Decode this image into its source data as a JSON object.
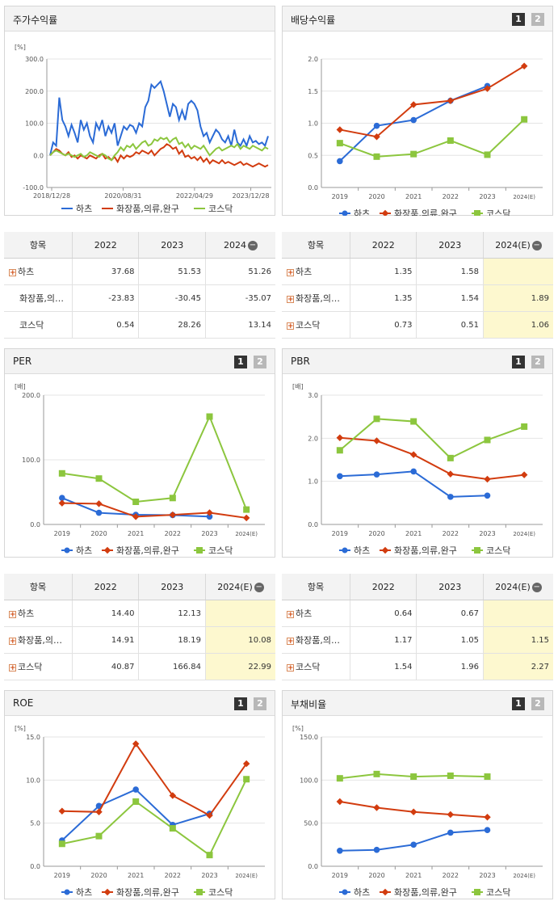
{
  "legend_items": [
    "하츠",
    "화장품,의류,완구",
    "코스닥"
  ],
  "series_colors": [
    "#2b6bd6",
    "#d23c0f",
    "#8cc63e"
  ],
  "tab_labels": [
    "1",
    "2"
  ],
  "charts": {
    "stock": {
      "title": "주가수익률",
      "unit": "[%]",
      "chart_data": {
        "type": "line",
        "x_ticks": [
          "2018/12/28",
          "2020/08/31",
          "2022/04/29",
          "2023/12/28"
        ],
        "y_ticks": [
          "300.0",
          "200.0",
          "100.0",
          "0.0",
          "-100.0"
        ],
        "ylim": [
          -100,
          300
        ],
        "series": [
          {
            "name": "하츠",
            "values": [
              0,
              40,
              30,
              180,
              110,
              90,
              60,
              95,
              70,
              40,
              110,
              80,
              100,
              60,
              40,
              100,
              80,
              110,
              60,
              90,
              70,
              100,
              30,
              60,
              90,
              80,
              95,
              90,
              70,
              100,
              90,
              150,
              170,
              220,
              210,
              220,
              230,
              200,
              160,
              120,
              160,
              150,
              110,
              140,
              110,
              160,
              170,
              160,
              140,
              90,
              60,
              70,
              40,
              60,
              80,
              70,
              50,
              40,
              60,
              30,
              80,
              40,
              30,
              50,
              30,
              60,
              40,
              45,
              35,
              40,
              30,
              60
            ]
          },
          {
            "name": "화장품,의류,완구",
            "values": [
              0,
              10,
              20,
              15,
              5,
              0,
              10,
              -5,
              0,
              -10,
              0,
              -5,
              -10,
              0,
              -5,
              -10,
              0,
              5,
              -10,
              -5,
              -15,
              -5,
              -20,
              0,
              -10,
              0,
              -5,
              0,
              10,
              5,
              15,
              10,
              5,
              15,
              0,
              10,
              20,
              25,
              35,
              30,
              20,
              25,
              5,
              15,
              -5,
              0,
              -10,
              -5,
              -15,
              -5,
              -20,
              -10,
              -25,
              -15,
              -20,
              -25,
              -15,
              -25,
              -20,
              -25,
              -30,
              -25,
              -20,
              -30,
              -25,
              -30,
              -35,
              -30,
              -25,
              -30,
              -35,
              -30
            ]
          },
          {
            "name": "코스닥",
            "values": [
              0,
              10,
              15,
              10,
              5,
              0,
              5,
              0,
              -5,
              0,
              5,
              -5,
              0,
              10,
              5,
              0,
              -5,
              5,
              0,
              -10,
              -15,
              0,
              10,
              25,
              15,
              30,
              25,
              35,
              20,
              30,
              40,
              45,
              30,
              35,
              50,
              45,
              55,
              50,
              55,
              40,
              50,
              55,
              35,
              40,
              25,
              35,
              20,
              30,
              25,
              20,
              30,
              15,
              0,
              10,
              20,
              25,
              15,
              20,
              25,
              30,
              25,
              35,
              20,
              30,
              25,
              20,
              30,
              25,
              20,
              15,
              25,
              20
            ]
          }
        ]
      }
    },
    "div": {
      "title": "배당수익률",
      "chart_data": {
        "type": "line",
        "categories": [
          "2019",
          "2020",
          "2021",
          "2022",
          "2023",
          "2024(E)"
        ],
        "y_ticks": [
          "2.0",
          "1.5",
          "1.0",
          "0.5",
          "0.0"
        ],
        "ylim": [
          0,
          2.0
        ],
        "series": [
          {
            "name": "하츠",
            "values": [
              0.41,
              0.96,
              1.05,
              1.35,
              1.58,
              null
            ]
          },
          {
            "name": "화장품,의류,완구",
            "values": [
              0.9,
              0.79,
              1.29,
              1.35,
              1.54,
              1.89
            ]
          },
          {
            "name": "코스닥",
            "values": [
              0.69,
              0.48,
              0.52,
              0.73,
              0.51,
              1.06
            ]
          }
        ]
      }
    },
    "per": {
      "title": "PER",
      "unit": "[배]",
      "chart_data": {
        "type": "line",
        "categories": [
          "2019",
          "2020",
          "2021",
          "2022",
          "2023",
          "2024(E)"
        ],
        "y_ticks": [
          "200.0",
          "100.0",
          "0.0"
        ],
        "ylim": [
          0,
          200
        ],
        "series": [
          {
            "name": "하츠",
            "values": [
              41,
              18,
              15,
              14.4,
              12.13,
              null
            ]
          },
          {
            "name": "화장품,의류,완구",
            "values": [
              33,
              32,
              12,
              14.91,
              18.19,
              10.08
            ]
          },
          {
            "name": "코스닥",
            "values": [
              79,
              71,
              35,
              40.87,
              166.84,
              22.99
            ]
          }
        ]
      }
    },
    "pbr": {
      "title": "PBR",
      "unit": "[배]",
      "chart_data": {
        "type": "line",
        "categories": [
          "2019",
          "2020",
          "2021",
          "2022",
          "2023",
          "2024(E)"
        ],
        "y_ticks": [
          "3.0",
          "2.0",
          "1.0",
          "0.0"
        ],
        "ylim": [
          0,
          3.0
        ],
        "series": [
          {
            "name": "하츠",
            "values": [
              1.12,
              1.16,
              1.23,
              0.64,
              0.67,
              null
            ]
          },
          {
            "name": "화장품,의류,완구",
            "values": [
              2.01,
              1.94,
              1.62,
              1.17,
              1.05,
              1.15
            ]
          },
          {
            "name": "코스닥",
            "values": [
              1.72,
              2.45,
              2.39,
              1.54,
              1.96,
              2.27
            ]
          }
        ]
      }
    },
    "roe": {
      "title": "ROE",
      "unit": "[%]",
      "chart_data": {
        "type": "line",
        "categories": [
          "2019",
          "2020",
          "2021",
          "2022",
          "2023",
          "2024(E)"
        ],
        "y_ticks": [
          "15.0",
          "10.0",
          "5.0",
          "0.0"
        ],
        "ylim": [
          0,
          15
        ],
        "series": [
          {
            "name": "하츠",
            "values": [
              3.0,
              7.0,
              8.9,
              4.8,
              6.1,
              null
            ]
          },
          {
            "name": "화장품,의류,완구",
            "values": [
              6.4,
              6.3,
              14.2,
              8.2,
              5.9,
              11.9
            ]
          },
          {
            "name": "코스닥",
            "values": [
              2.6,
              3.5,
              7.5,
              4.4,
              1.3,
              10.1
            ]
          }
        ]
      }
    },
    "debt": {
      "title": "부채비율",
      "unit": "[%]",
      "chart_data": {
        "type": "line",
        "categories": [
          "2019",
          "2020",
          "2021",
          "2022",
          "2023",
          "2024(E)"
        ],
        "y_ticks": [
          "150.0",
          "100.0",
          "50.0",
          "0.0"
        ],
        "ylim": [
          0,
          150
        ],
        "series": [
          {
            "name": "하츠",
            "values": [
              18,
              19,
              25,
              39,
              42,
              null
            ]
          },
          {
            "name": "화장품,의류,완구",
            "values": [
              75,
              68,
              63,
              60,
              57,
              null
            ]
          },
          {
            "name": "코스닥",
            "values": [
              102,
              107,
              104,
              105,
              104,
              null
            ]
          }
        ]
      }
    }
  },
  "tables": {
    "stock": {
      "headers": [
        "항목",
        "2022",
        "2023",
        "2024"
      ],
      "rows": [
        {
          "name": "하츠",
          "expandable": true,
          "values": [
            "37.68",
            "51.53",
            "51.26"
          ]
        },
        {
          "name": "화장품,의…",
          "expandable": false,
          "values": [
            "-23.83",
            "-30.45",
            "-35.07"
          ]
        },
        {
          "name": "코스닥",
          "expandable": false,
          "values": [
            "0.54",
            "28.26",
            "13.14"
          ]
        }
      ]
    },
    "div": {
      "headers": [
        "항목",
        "2022",
        "2023",
        "2024(E)"
      ],
      "rows": [
        {
          "name": "하츠",
          "expandable": true,
          "values": [
            "1.35",
            "1.58",
            ""
          ]
        },
        {
          "name": "화장품,의…",
          "expandable": true,
          "values": [
            "1.35",
            "1.54",
            "1.89"
          ]
        },
        {
          "name": "코스닥",
          "expandable": true,
          "values": [
            "0.73",
            "0.51",
            "1.06"
          ]
        }
      ]
    },
    "per": {
      "headers": [
        "항목",
        "2022",
        "2023",
        "2024(E)"
      ],
      "rows": [
        {
          "name": "하츠",
          "expandable": true,
          "values": [
            "14.40",
            "12.13",
            ""
          ]
        },
        {
          "name": "화장품,의…",
          "expandable": true,
          "values": [
            "14.91",
            "18.19",
            "10.08"
          ]
        },
        {
          "name": "코스닥",
          "expandable": true,
          "values": [
            "40.87",
            "166.84",
            "22.99"
          ]
        }
      ]
    },
    "pbr": {
      "headers": [
        "항목",
        "2022",
        "2023",
        "2024(E)"
      ],
      "rows": [
        {
          "name": "하츠",
          "expandable": true,
          "values": [
            "0.64",
            "0.67",
            ""
          ]
        },
        {
          "name": "화장품,의…",
          "expandable": true,
          "values": [
            "1.17",
            "1.05",
            "1.15"
          ]
        },
        {
          "name": "코스닥",
          "expandable": true,
          "values": [
            "1.54",
            "1.96",
            "2.27"
          ]
        }
      ]
    }
  }
}
